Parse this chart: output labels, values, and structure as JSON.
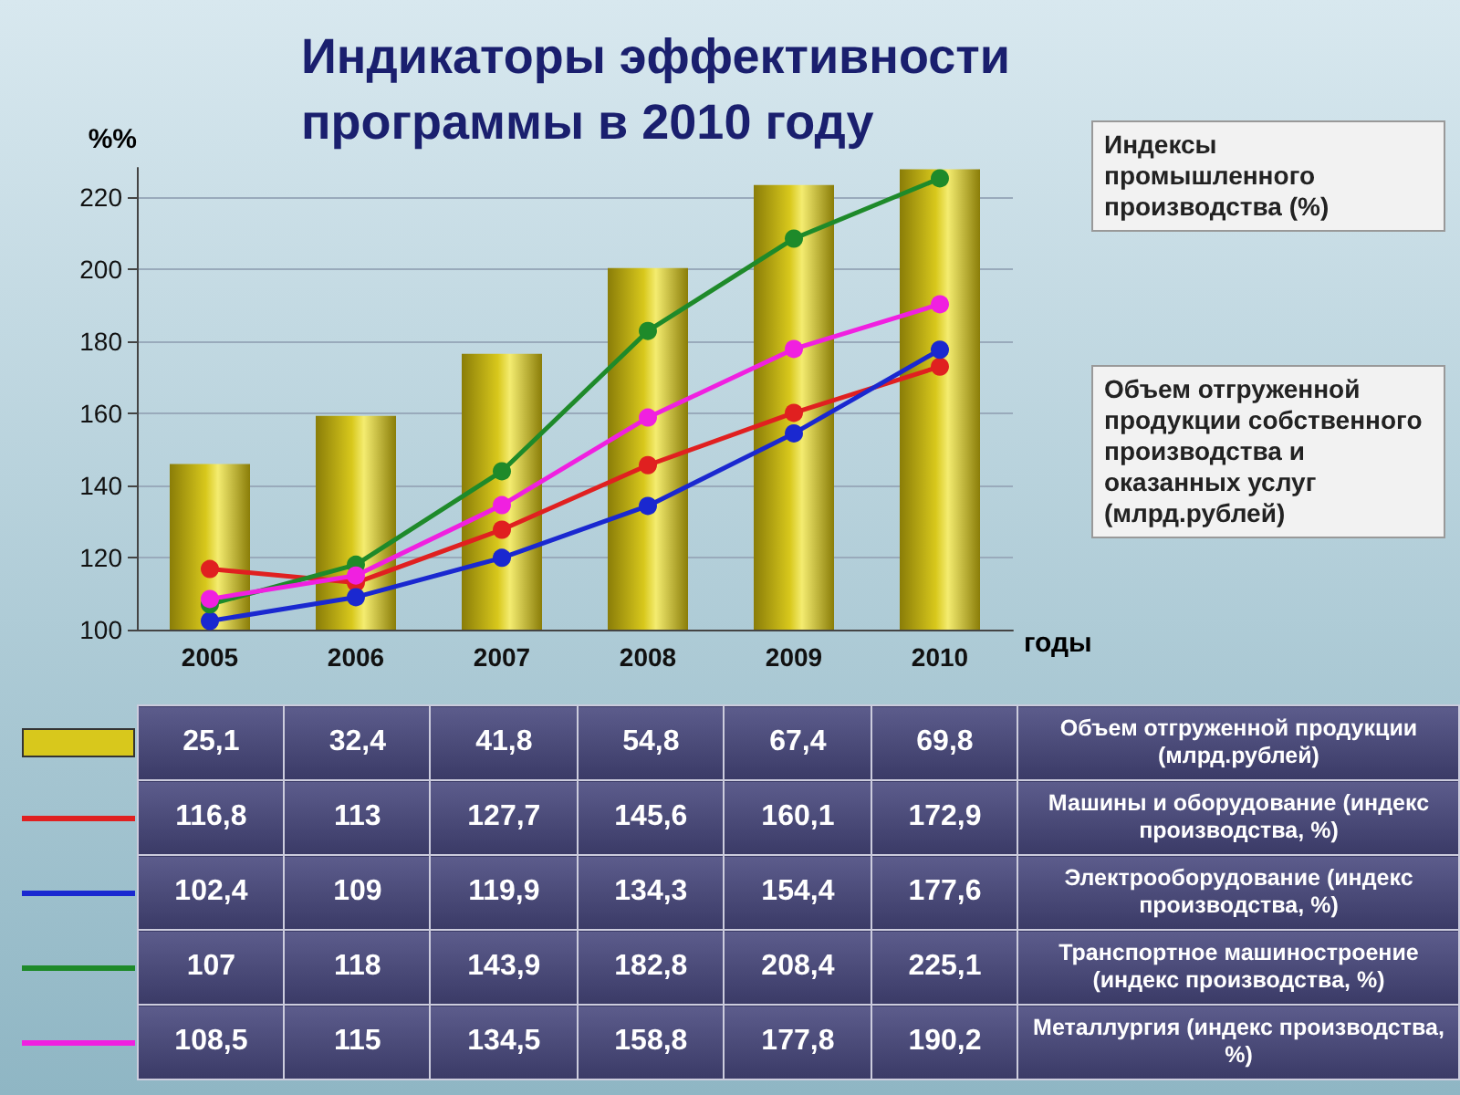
{
  "chart_data": {
    "type": "bar",
    "title": "Индикаторы эффективности\nпрограммы в 2010 году",
    "ylabel": "%%",
    "xlabel": "годы",
    "categories": [
      "2005",
      "2006",
      "2007",
      "2008",
      "2009",
      "2010"
    ],
    "series": [
      {
        "name": "Объем отгруженной продукции (млрд.рублей)",
        "axis": "y2",
        "color": "#d8c81c",
        "values": [
          25.1,
          32.4,
          41.8,
          54.8,
          67.4,
          69.8
        ],
        "value_labels": [
          "25,1",
          "32,4",
          "41,8",
          "54,8",
          "67,4",
          "69,8"
        ]
      },
      {
        "name": "Машины и оборудование (индекс производства, %)",
        "type": "line",
        "color": "#e02020",
        "values": [
          116.8,
          113,
          127.7,
          145.6,
          160.1,
          172.9
        ],
        "value_labels": [
          "116,8",
          "113",
          "127,7",
          "145,6",
          "160,1",
          "172,9"
        ]
      },
      {
        "name": "Электрооборудование (индекс производства, %)",
        "type": "line",
        "color": "#1a28d0",
        "values": [
          102.4,
          109,
          119.9,
          134.3,
          154.4,
          177.6
        ],
        "value_labels": [
          "102,4",
          "109",
          "119,9",
          "134,3",
          "154,4",
          "177,6"
        ]
      },
      {
        "name": "Транспортное машиностроение (индекс производства, %)",
        "type": "line",
        "color": "#1e8a2a",
        "values": [
          107,
          118,
          143.9,
          182.8,
          208.4,
          225.1
        ],
        "value_labels": [
          "107",
          "118",
          "143,9",
          "182,8",
          "208,4",
          "225,1"
        ]
      },
      {
        "name": "Металлургия (индекс производства, %)",
        "type": "line",
        "color": "#f020e0",
        "values": [
          108.5,
          115,
          134.5,
          158.8,
          177.8,
          190.2
        ],
        "value_labels": [
          "108,5",
          "115",
          "134,5",
          "158,8",
          "177,8",
          "190,2"
        ]
      }
    ],
    "ylim": [
      100,
      228
    ],
    "yticks": [
      100,
      120,
      140,
      160,
      180,
      200,
      220
    ],
    "annotations": [
      "Индексы промышленного производства (%)",
      "Объем отгруженной продукции собственного производства и оказанных услуг (млрд.рублей)"
    ],
    "legend": "bottom",
    "grid": "y",
    "marker": "circle",
    "line_style": "solid"
  }
}
